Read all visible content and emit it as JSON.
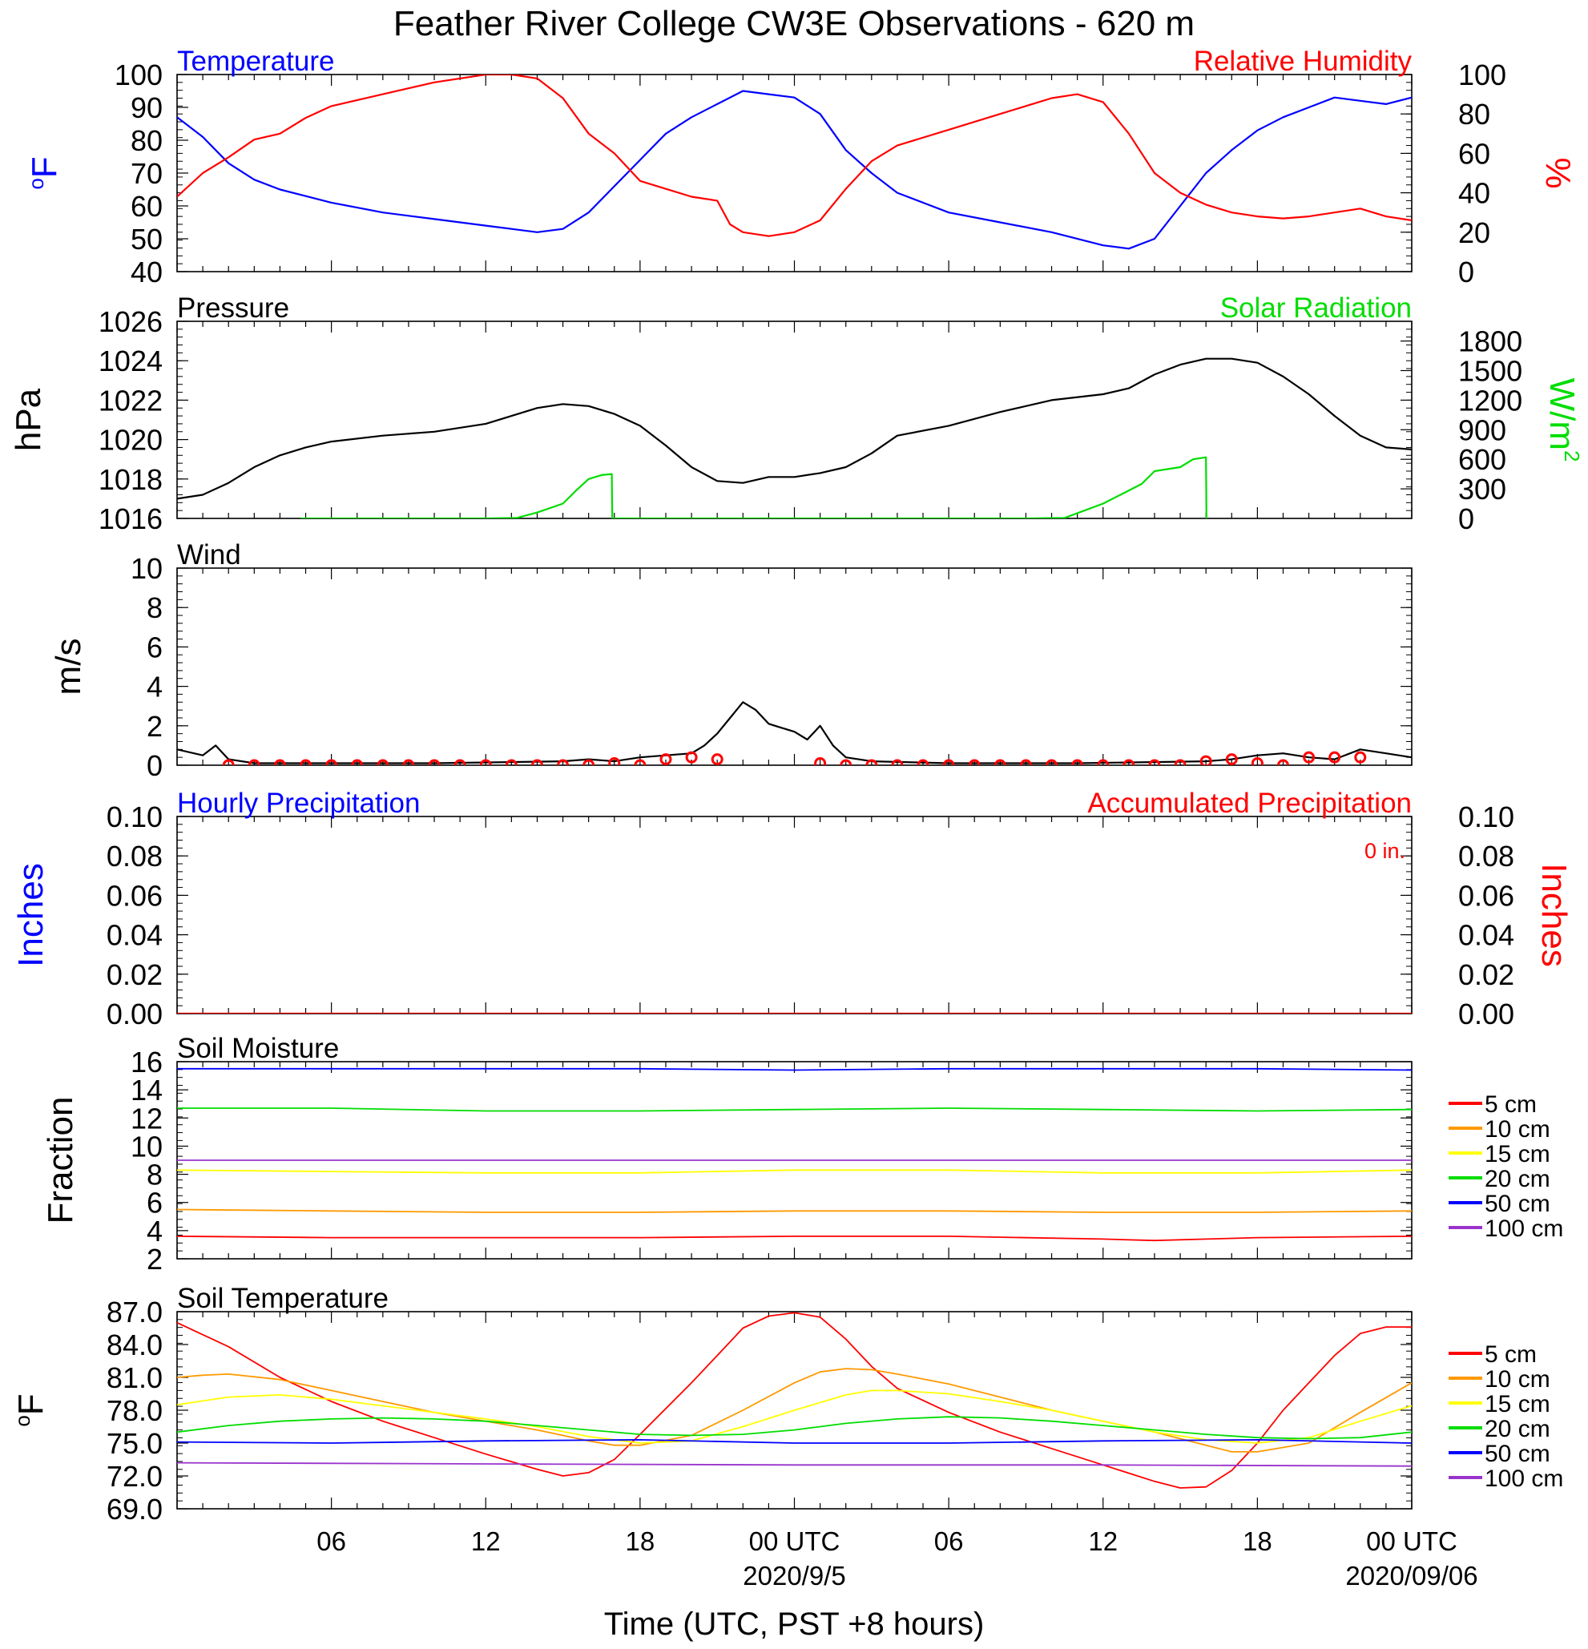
{
  "title": "Feather River College CW3E Observations - 620 m",
  "x_axis": {
    "label": "Time (UTC, PST +8 hours)",
    "ticks": [
      "06",
      "12",
      "18",
      "00 UTC",
      "06",
      "12",
      "18",
      "00 UTC"
    ],
    "dates": [
      "2020/9/5",
      "2020/09/06"
    ]
  },
  "colors": {
    "blue": "#0000ff",
    "red": "#ff0000",
    "green": "#00dd00",
    "black": "#000000",
    "orange": "#ff9900",
    "yellow": "#ffff00",
    "purple": "#9933cc"
  },
  "legend": {
    "entries": [
      {
        "label": "5 cm",
        "color": "#ff0000"
      },
      {
        "label": "10 cm",
        "color": "#ff9900"
      },
      {
        "label": "15 cm",
        "color": "#ffff00"
      },
      {
        "label": "20 cm",
        "color": "#00dd00"
      },
      {
        "label": "50 cm",
        "color": "#0000ff"
      },
      {
        "label": "100 cm",
        "color": "#9933cc"
      }
    ]
  },
  "chart_data": [
    {
      "type": "line",
      "title_left": "Temperature",
      "title_right": "Relative Humidity",
      "ylabel_left": "oF",
      "ylabel_right": "%",
      "ylim_left": [
        40,
        100
      ],
      "ylim_right": [
        0,
        100
      ],
      "yticks_left": [
        "40",
        "50",
        "60",
        "70",
        "80",
        "90",
        "100"
      ],
      "yticks_right": [
        "0",
        "20",
        "40",
        "60",
        "80",
        "100"
      ],
      "series": [
        {
          "name": "Temperature",
          "axis": "left",
          "color": "#0000ff",
          "x": [
            0,
            1,
            2,
            3,
            4,
            5,
            6,
            8,
            10,
            12,
            13,
            14,
            15,
            16,
            17,
            18,
            19,
            20,
            21,
            22,
            23,
            24,
            25,
            26,
            27,
            28,
            30,
            32,
            34,
            36,
            37,
            38,
            39,
            40,
            41,
            42,
            43,
            44,
            45,
            46,
            47,
            48
          ],
          "y": [
            87,
            81,
            73,
            68,
            65,
            63,
            61,
            58,
            56,
            54,
            53,
            52,
            53,
            58,
            66,
            74,
            82,
            87,
            91,
            95,
            94,
            93,
            88,
            77,
            70,
            64,
            58,
            55,
            52,
            48,
            47,
            50,
            60,
            70,
            77,
            83,
            87,
            90,
            93,
            92,
            91,
            93
          ]
        },
        {
          "name": "Relative Humidity",
          "axis": "right",
          "color": "#ff0000",
          "x": [
            0,
            1,
            2,
            3,
            4,
            5,
            6,
            8,
            10,
            12,
            13,
            14,
            15,
            16,
            17,
            18,
            19,
            20,
            21,
            21.5,
            22,
            23,
            24,
            25,
            26,
            27,
            28,
            30,
            32,
            34,
            35,
            36,
            37,
            38,
            39,
            40,
            41,
            42,
            43,
            44,
            45,
            46,
            47,
            48
          ],
          "y": [
            38,
            50,
            58,
            67,
            70,
            78,
            84,
            90,
            96,
            100,
            100,
            98,
            88,
            70,
            60,
            46,
            42,
            38,
            36,
            24,
            20,
            18,
            20,
            26,
            42,
            56,
            64,
            72,
            80,
            88,
            90,
            86,
            70,
            50,
            40,
            34,
            30,
            28,
            27,
            28,
            30,
            32,
            28,
            26
          ]
        }
      ]
    },
    {
      "type": "line",
      "title_left": "Pressure",
      "title_right": "Solar Radiation",
      "ylabel_left": "hPa",
      "ylabel_right": "W/m2",
      "ylim_left": [
        1016,
        1026
      ],
      "ylim_right": [
        0,
        2000
      ],
      "yticks_left": [
        "1016",
        "1018",
        "1020",
        "1022",
        "1024",
        "1026"
      ],
      "yticks_right": [
        "0",
        "300",
        "600",
        "900",
        "1200",
        "1500",
        "1800"
      ],
      "series": [
        {
          "name": "Pressure",
          "axis": "left",
          "color": "#000000",
          "x": [
            0,
            1,
            2,
            3,
            4,
            5,
            6,
            8,
            10,
            12,
            13,
            14,
            15,
            16,
            17,
            18,
            19,
            20,
            21,
            22,
            23,
            24,
            25,
            26,
            27,
            28,
            30,
            32,
            34,
            36,
            37,
            38,
            39,
            40,
            41,
            42,
            43,
            44,
            45,
            46,
            47,
            48
          ],
          "y": [
            1017.0,
            1017.2,
            1017.8,
            1018.6,
            1019.2,
            1019.6,
            1019.9,
            1020.2,
            1020.4,
            1020.8,
            1021.2,
            1021.6,
            1021.8,
            1021.7,
            1021.3,
            1020.7,
            1019.7,
            1018.6,
            1017.9,
            1017.8,
            1018.1,
            1018.1,
            1018.3,
            1018.6,
            1019.3,
            1020.2,
            1020.7,
            1021.4,
            1022.0,
            1022.3,
            1022.6,
            1023.3,
            1023.8,
            1024.1,
            1024.1,
            1023.9,
            1023.2,
            1022.3,
            1021.2,
            1020.2,
            1019.6,
            1019.5
          ]
        },
        {
          "name": "Solar Radiation",
          "axis": "right",
          "color": "#00dd00",
          "x": [
            0,
            4.8,
            12,
            13.2,
            14,
            15,
            15.5,
            16,
            16.5,
            16.9,
            16.92,
            23.8,
            33,
            34.5,
            36,
            37.5,
            38,
            38.5,
            39,
            39.5,
            40,
            40.02,
            48
          ],
          "y": [
            null,
            0,
            0,
            5,
            60,
            150,
            280,
            400,
            440,
            450,
            0,
            0,
            0,
            5,
            150,
            350,
            480,
            500,
            520,
            600,
            620,
            0,
            null
          ]
        }
      ]
    },
    {
      "type": "line",
      "title_left": "Wind",
      "ylabel_left": "m/s",
      "ylim_left": [
        0,
        10
      ],
      "yticks_left": [
        "0",
        "2",
        "4",
        "6",
        "8",
        "10"
      ],
      "series": [
        {
          "name": "Wind",
          "axis": "left",
          "color": "#000000",
          "x": [
            0,
            1,
            1.5,
            2,
            3,
            5,
            10,
            15,
            16,
            17,
            18,
            19,
            20,
            20.5,
            21,
            21.5,
            22,
            22.5,
            23,
            23.5,
            24,
            24.5,
            25,
            25.5,
            26,
            27,
            30,
            35,
            40,
            41,
            42,
            43,
            44,
            45,
            46,
            47,
            48
          ],
          "y": [
            0.8,
            0.5,
            1.0,
            0.3,
            0.1,
            0.1,
            0.1,
            0.2,
            0.3,
            0.2,
            0.4,
            0.5,
            0.6,
            1.0,
            1.6,
            2.4,
            3.2,
            2.8,
            2.1,
            1.9,
            1.7,
            1.3,
            2.0,
            1.0,
            0.4,
            0.2,
            0.1,
            0.1,
            0.2,
            0.3,
            0.5,
            0.6,
            0.4,
            0.3,
            0.8,
            0.6,
            0.4
          ]
        }
      ],
      "direction_circles_x": [
        2,
        3,
        4,
        5,
        6,
        7,
        8,
        9,
        10,
        11,
        12,
        13,
        14,
        15,
        16,
        17,
        18,
        19,
        20,
        21,
        25,
        26,
        27,
        28,
        29,
        30,
        31,
        32,
        33,
        34,
        35,
        36,
        37,
        38,
        39,
        40,
        41,
        42,
        43,
        44,
        45,
        46
      ],
      "direction_circles_y": [
        0,
        0,
        0,
        0,
        0,
        0,
        0,
        0,
        0,
        0,
        0,
        0,
        0,
        0,
        0,
        0.1,
        0,
        0.3,
        0.4,
        0.3,
        0.1,
        0,
        0,
        0,
        0,
        0,
        0,
        0,
        0,
        0,
        0,
        0,
        0,
        0,
        0,
        0.2,
        0.3,
        0.1,
        0,
        0.4,
        0.4,
        0.4
      ]
    },
    {
      "type": "line",
      "title_left": "Hourly Precipitation",
      "title_right": "Accumulated Precipitation",
      "annotation": "0 in.",
      "ylabel_left": "Inches",
      "ylabel_right": "Inches",
      "ylim_left": [
        0,
        0.1
      ],
      "ylim_right": [
        0,
        0.1
      ],
      "yticks_left": [
        "0.00",
        "0.02",
        "0.04",
        "0.06",
        "0.08",
        "0.10"
      ],
      "yticks_right": [
        "0.00",
        "0.02",
        "0.04",
        "0.06",
        "0.08",
        "0.10"
      ],
      "series": [
        {
          "name": "Accumulated Precipitation",
          "axis": "left",
          "color": "#ff0000",
          "x": [
            0,
            48
          ],
          "y": [
            0,
            0
          ]
        }
      ]
    },
    {
      "type": "line",
      "title_left": "Soil Moisture",
      "ylabel_left": "Fraction",
      "ylim_left": [
        2,
        16
      ],
      "yticks_left": [
        "2",
        "4",
        "6",
        "8",
        "10",
        "12",
        "14",
        "16"
      ],
      "series": [
        {
          "name": "5 cm",
          "color": "#ff0000",
          "x": [
            0,
            6,
            12,
            18,
            24,
            30,
            36,
            38,
            40,
            42,
            48
          ],
          "y": [
            3.6,
            3.5,
            3.5,
            3.5,
            3.6,
            3.6,
            3.4,
            3.3,
            3.4,
            3.5,
            3.6
          ]
        },
        {
          "name": "10 cm",
          "color": "#ff9900",
          "x": [
            0,
            6,
            12,
            18,
            24,
            30,
            36,
            42,
            48
          ],
          "y": [
            5.5,
            5.4,
            5.3,
            5.3,
            5.4,
            5.4,
            5.3,
            5.3,
            5.4
          ]
        },
        {
          "name": "15 cm",
          "color": "#ffff00",
          "x": [
            0,
            6,
            12,
            18,
            24,
            30,
            36,
            42,
            48
          ],
          "y": [
            8.3,
            8.2,
            8.1,
            8.1,
            8.3,
            8.3,
            8.1,
            8.1,
            8.3
          ]
        },
        {
          "name": "20 cm",
          "color": "#00dd00",
          "x": [
            0,
            6,
            12,
            18,
            24,
            30,
            36,
            42,
            48
          ],
          "y": [
            12.7,
            12.7,
            12.5,
            12.5,
            12.6,
            12.7,
            12.6,
            12.5,
            12.6
          ]
        },
        {
          "name": "50 cm",
          "color": "#0000ff",
          "x": [
            0,
            6,
            12,
            18,
            24,
            30,
            36,
            42,
            48
          ],
          "y": [
            15.5,
            15.5,
            15.5,
            15.5,
            15.4,
            15.5,
            15.5,
            15.5,
            15.4
          ]
        },
        {
          "name": "100 cm",
          "color": "#9933cc",
          "x": [
            0,
            48
          ],
          "y": [
            9.0,
            9.0
          ]
        }
      ]
    },
    {
      "type": "line",
      "title_left": "Soil Temperature",
      "ylabel_left": "oF",
      "ylim_left": [
        69,
        87
      ],
      "yticks_left": [
        "69.0",
        "72.0",
        "75.0",
        "78.0",
        "81.0",
        "84.0",
        "87.0"
      ],
      "series": [
        {
          "name": "5 cm",
          "color": "#ff0000",
          "x": [
            0,
            2,
            4,
            6,
            8,
            10,
            12,
            14,
            15,
            16,
            17,
            18,
            20,
            21,
            22,
            23,
            24,
            25,
            26,
            27,
            28,
            30,
            32,
            34,
            36,
            38,
            39,
            40,
            41,
            42,
            43,
            44,
            45,
            46,
            47,
            48
          ],
          "y": [
            86.0,
            83.8,
            81.0,
            78.8,
            77.0,
            75.5,
            74.0,
            72.6,
            72.0,
            72.3,
            73.5,
            75.8,
            80.5,
            83.0,
            85.5,
            86.6,
            86.9,
            86.5,
            84.5,
            82.0,
            80.0,
            77.8,
            76.0,
            74.5,
            73.0,
            71.5,
            70.9,
            71.0,
            72.5,
            75.0,
            78.0,
            80.5,
            83.0,
            85.0,
            85.6,
            85.6
          ]
        },
        {
          "name": "10 cm",
          "color": "#ff9900",
          "x": [
            0,
            1,
            2,
            4,
            6,
            8,
            10,
            12,
            14,
            16,
            17,
            18,
            20,
            22,
            24,
            25,
            26,
            27,
            28,
            30,
            32,
            34,
            36,
            38,
            40,
            41,
            42,
            44,
            46,
            48
          ],
          "y": [
            81.0,
            81.2,
            81.3,
            80.8,
            79.8,
            78.8,
            77.8,
            77.0,
            76.2,
            75.2,
            74.8,
            74.8,
            75.7,
            78.0,
            80.5,
            81.5,
            81.8,
            81.7,
            81.3,
            80.4,
            79.2,
            78.0,
            77.0,
            76.0,
            74.8,
            74.2,
            74.2,
            75.0,
            77.8,
            80.5
          ]
        },
        {
          "name": "15 cm",
          "color": "#ffff00",
          "x": [
            0,
            2,
            4,
            6,
            8,
            10,
            12,
            14,
            16,
            18,
            20,
            22,
            24,
            26,
            27,
            28,
            30,
            32,
            34,
            36,
            38,
            40,
            42,
            44,
            46,
            48
          ],
          "y": [
            78.5,
            79.2,
            79.4,
            79.0,
            78.4,
            77.8,
            77.2,
            76.5,
            75.6,
            75.0,
            75.2,
            76.5,
            78.0,
            79.4,
            79.8,
            79.8,
            79.5,
            78.8,
            78.0,
            77.0,
            76.0,
            75.3,
            75.0,
            75.5,
            77.0,
            78.4
          ]
        },
        {
          "name": "20 cm",
          "color": "#00dd00",
          "x": [
            0,
            2,
            4,
            6,
            8,
            10,
            12,
            14,
            16,
            18,
            20,
            22,
            24,
            26,
            28,
            30,
            32,
            34,
            36,
            38,
            40,
            42,
            44,
            46,
            48
          ],
          "y": [
            76.0,
            76.6,
            77.0,
            77.2,
            77.3,
            77.2,
            77.0,
            76.6,
            76.2,
            75.8,
            75.7,
            75.8,
            76.2,
            76.8,
            77.2,
            77.4,
            77.3,
            77.0,
            76.6,
            76.2,
            75.8,
            75.5,
            75.4,
            75.5,
            76.0
          ]
        },
        {
          "name": "50 cm",
          "color": "#0000ff",
          "x": [
            0,
            6,
            12,
            18,
            24,
            30,
            36,
            42,
            48
          ],
          "y": [
            75.1,
            75.0,
            75.2,
            75.3,
            75.0,
            75.0,
            75.2,
            75.3,
            75.0
          ]
        },
        {
          "name": "100 cm",
          "color": "#9933cc",
          "x": [
            0,
            12,
            24,
            36,
            48
          ],
          "y": [
            73.2,
            73.1,
            73.0,
            73.0,
            72.9
          ]
        }
      ]
    }
  ]
}
